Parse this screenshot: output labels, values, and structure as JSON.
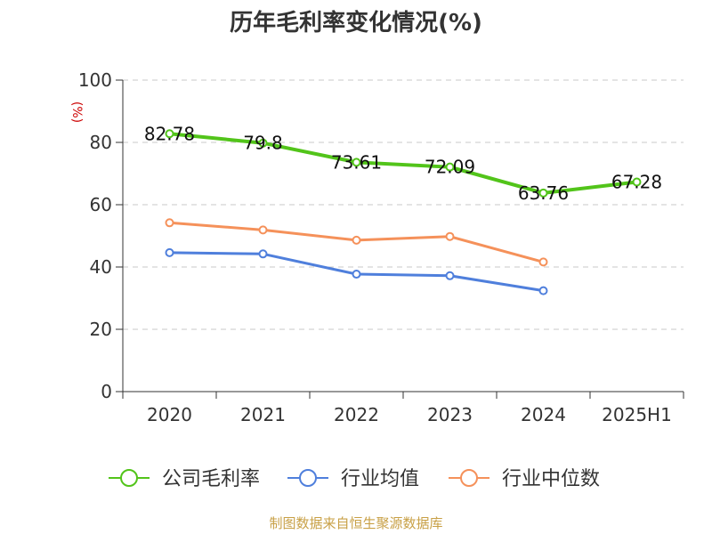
{
  "chart_data": {
    "type": "line",
    "title": "历年毛利率变化情况(%)",
    "y_unit_label": "(%)",
    "categories": [
      "2020",
      "2021",
      "2022",
      "2023",
      "2024",
      "2025H1"
    ],
    "ylim": [
      0,
      100
    ],
    "yticks": [
      0,
      20,
      40,
      60,
      80,
      100
    ],
    "grid": true,
    "legend_position": "bottom",
    "series": [
      {
        "name": "公司毛利率",
        "color": "#52c41a",
        "values": [
          82.78,
          79.8,
          73.61,
          72.09,
          63.76,
          67.28
        ],
        "labels": [
          "82.78",
          "79.8",
          "73.61",
          "72.09",
          "63.76",
          "67.28"
        ]
      },
      {
        "name": "行业均值",
        "color": "#4f7fdc",
        "values": [
          44.6,
          44.2,
          37.7,
          37.2,
          32.4,
          null
        ]
      },
      {
        "name": "行业中位数",
        "color": "#f5915a",
        "values": [
          54.2,
          51.9,
          48.6,
          49.8,
          41.6,
          null
        ]
      }
    ]
  },
  "source": "制图数据来自恒生聚源数据库"
}
